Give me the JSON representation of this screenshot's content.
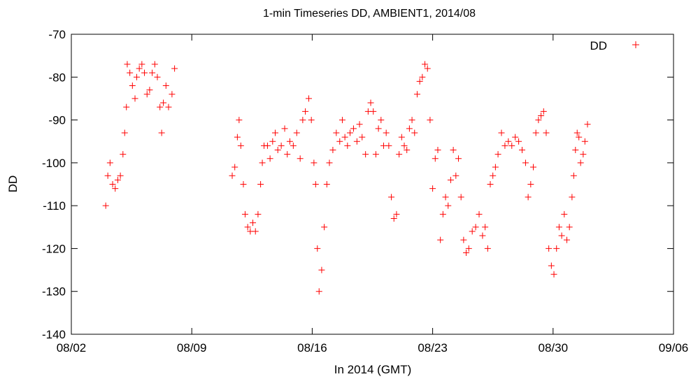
{
  "chart_data": {
    "type": "scatter",
    "title": "1-min Timeseries DD, AMBIENT1, 2014/08",
    "xlabel": "In 2014 (GMT)",
    "ylabel": "DD",
    "xlim": [
      "2014-08-02",
      "2014-09-06"
    ],
    "ylim": [
      -140,
      -70
    ],
    "x_ticks": [
      "08/02",
      "08/09",
      "08/16",
      "08/23",
      "08/30",
      "09/06"
    ],
    "y_ticks": [
      -70,
      -80,
      -90,
      -100,
      -110,
      -120,
      -130,
      -140
    ],
    "grid": false,
    "legend_position": "top-right",
    "series": [
      {
        "name": "DD",
        "color": "#ff0000",
        "marker": "plus",
        "x_unit": "day of August 2014 (GMT)",
        "points": [
          [
            4.0,
            -110
          ],
          [
            4.12,
            -103
          ],
          [
            4.25,
            -100
          ],
          [
            4.4,
            -105
          ],
          [
            4.55,
            -106
          ],
          [
            4.7,
            -104
          ],
          [
            4.85,
            -103
          ],
          [
            5.0,
            -98
          ],
          [
            5.1,
            -93
          ],
          [
            5.2,
            -87
          ],
          [
            5.25,
            -77
          ],
          [
            5.4,
            -79
          ],
          [
            5.55,
            -82
          ],
          [
            5.7,
            -85
          ],
          [
            5.8,
            -80
          ],
          [
            5.95,
            -78
          ],
          [
            6.1,
            -77
          ],
          [
            6.25,
            -79
          ],
          [
            6.4,
            -84
          ],
          [
            6.55,
            -83
          ],
          [
            6.7,
            -79
          ],
          [
            6.85,
            -77
          ],
          [
            7.0,
            -80
          ],
          [
            7.15,
            -87
          ],
          [
            7.25,
            -93
          ],
          [
            7.35,
            -86
          ],
          [
            7.5,
            -82
          ],
          [
            7.65,
            -87
          ],
          [
            7.85,
            -84
          ],
          [
            8.0,
            -78
          ],
          [
            11.35,
            -103
          ],
          [
            11.5,
            -101
          ],
          [
            11.65,
            -94
          ],
          [
            11.75,
            -90
          ],
          [
            11.85,
            -96
          ],
          [
            12.0,
            -105
          ],
          [
            12.1,
            -112
          ],
          [
            12.25,
            -115
          ],
          [
            12.4,
            -116
          ],
          [
            12.55,
            -114
          ],
          [
            12.7,
            -116
          ],
          [
            12.85,
            -112
          ],
          [
            13.0,
            -105
          ],
          [
            13.1,
            -100
          ],
          [
            13.2,
            -96
          ],
          [
            13.4,
            -96
          ],
          [
            13.55,
            -99
          ],
          [
            13.7,
            -95
          ],
          [
            13.85,
            -93
          ],
          [
            14.0,
            -97
          ],
          [
            14.2,
            -96
          ],
          [
            14.4,
            -92
          ],
          [
            14.55,
            -98
          ],
          [
            14.7,
            -95
          ],
          [
            14.9,
            -96
          ],
          [
            15.1,
            -93
          ],
          [
            15.3,
            -99
          ],
          [
            15.45,
            -90
          ],
          [
            15.6,
            -88
          ],
          [
            15.8,
            -85
          ],
          [
            15.95,
            -90
          ],
          [
            16.1,
            -100
          ],
          [
            16.2,
            -105
          ],
          [
            16.3,
            -120
          ],
          [
            16.4,
            -130
          ],
          [
            16.55,
            -125
          ],
          [
            16.7,
            -115
          ],
          [
            16.85,
            -105
          ],
          [
            17.0,
            -100
          ],
          [
            17.2,
            -97
          ],
          [
            17.4,
            -93
          ],
          [
            17.6,
            -95
          ],
          [
            17.75,
            -90
          ],
          [
            17.9,
            -94
          ],
          [
            18.05,
            -96
          ],
          [
            18.2,
            -93
          ],
          [
            18.4,
            -92
          ],
          [
            18.6,
            -95
          ],
          [
            18.75,
            -91
          ],
          [
            18.9,
            -94
          ],
          [
            19.1,
            -98
          ],
          [
            19.25,
            -88
          ],
          [
            19.4,
            -86
          ],
          [
            19.55,
            -88
          ],
          [
            19.7,
            -98
          ],
          [
            19.85,
            -92
          ],
          [
            20.0,
            -90
          ],
          [
            20.15,
            -96
          ],
          [
            20.3,
            -93
          ],
          [
            20.45,
            -96
          ],
          [
            20.6,
            -108
          ],
          [
            20.75,
            -113
          ],
          [
            20.9,
            -112
          ],
          [
            21.05,
            -98
          ],
          [
            21.2,
            -94
          ],
          [
            21.35,
            -96
          ],
          [
            21.5,
            -97
          ],
          [
            21.65,
            -92
          ],
          [
            21.8,
            -90
          ],
          [
            21.95,
            -93
          ],
          [
            22.1,
            -84
          ],
          [
            22.25,
            -81
          ],
          [
            22.4,
            -80
          ],
          [
            22.55,
            -77
          ],
          [
            22.7,
            -78
          ],
          [
            22.85,
            -90
          ],
          [
            23.0,
            -106
          ],
          [
            23.15,
            -99
          ],
          [
            23.3,
            -97
          ],
          [
            23.45,
            -118
          ],
          [
            23.6,
            -112
          ],
          [
            23.75,
            -108
          ],
          [
            23.9,
            -110
          ],
          [
            24.05,
            -104
          ],
          [
            24.2,
            -97
          ],
          [
            24.35,
            -103
          ],
          [
            24.5,
            -99
          ],
          [
            24.65,
            -108
          ],
          [
            24.8,
            -118
          ],
          [
            24.95,
            -121
          ],
          [
            25.1,
            -120
          ],
          [
            25.3,
            -116
          ],
          [
            25.5,
            -115
          ],
          [
            25.7,
            -112
          ],
          [
            25.9,
            -117
          ],
          [
            26.05,
            -115
          ],
          [
            26.2,
            -120
          ],
          [
            26.35,
            -105
          ],
          [
            26.5,
            -103
          ],
          [
            26.65,
            -101
          ],
          [
            26.8,
            -98
          ],
          [
            27.0,
            -93
          ],
          [
            27.2,
            -96
          ],
          [
            27.4,
            -95
          ],
          [
            27.6,
            -96
          ],
          [
            27.8,
            -94
          ],
          [
            28.0,
            -95
          ],
          [
            28.2,
            -97
          ],
          [
            28.4,
            -100
          ],
          [
            28.55,
            -108
          ],
          [
            28.7,
            -105
          ],
          [
            28.85,
            -101
          ],
          [
            29.0,
            -93
          ],
          [
            29.15,
            -90
          ],
          [
            29.3,
            -89
          ],
          [
            29.45,
            -88
          ],
          [
            29.6,
            -93
          ],
          [
            29.75,
            -120
          ],
          [
            29.9,
            -124
          ],
          [
            30.05,
            -126
          ],
          [
            30.2,
            -120
          ],
          [
            30.35,
            -115
          ],
          [
            30.5,
            -117
          ],
          [
            30.65,
            -112
          ],
          [
            30.8,
            -118
          ],
          [
            30.95,
            -115
          ],
          [
            31.1,
            -108
          ],
          [
            31.2,
            -103
          ],
          [
            31.3,
            -97
          ],
          [
            31.4,
            -93
          ],
          [
            31.5,
            -94
          ],
          [
            31.6,
            -100
          ],
          [
            31.75,
            -98
          ],
          [
            31.85,
            -95
          ],
          [
            32.0,
            -91
          ]
        ]
      }
    ]
  }
}
